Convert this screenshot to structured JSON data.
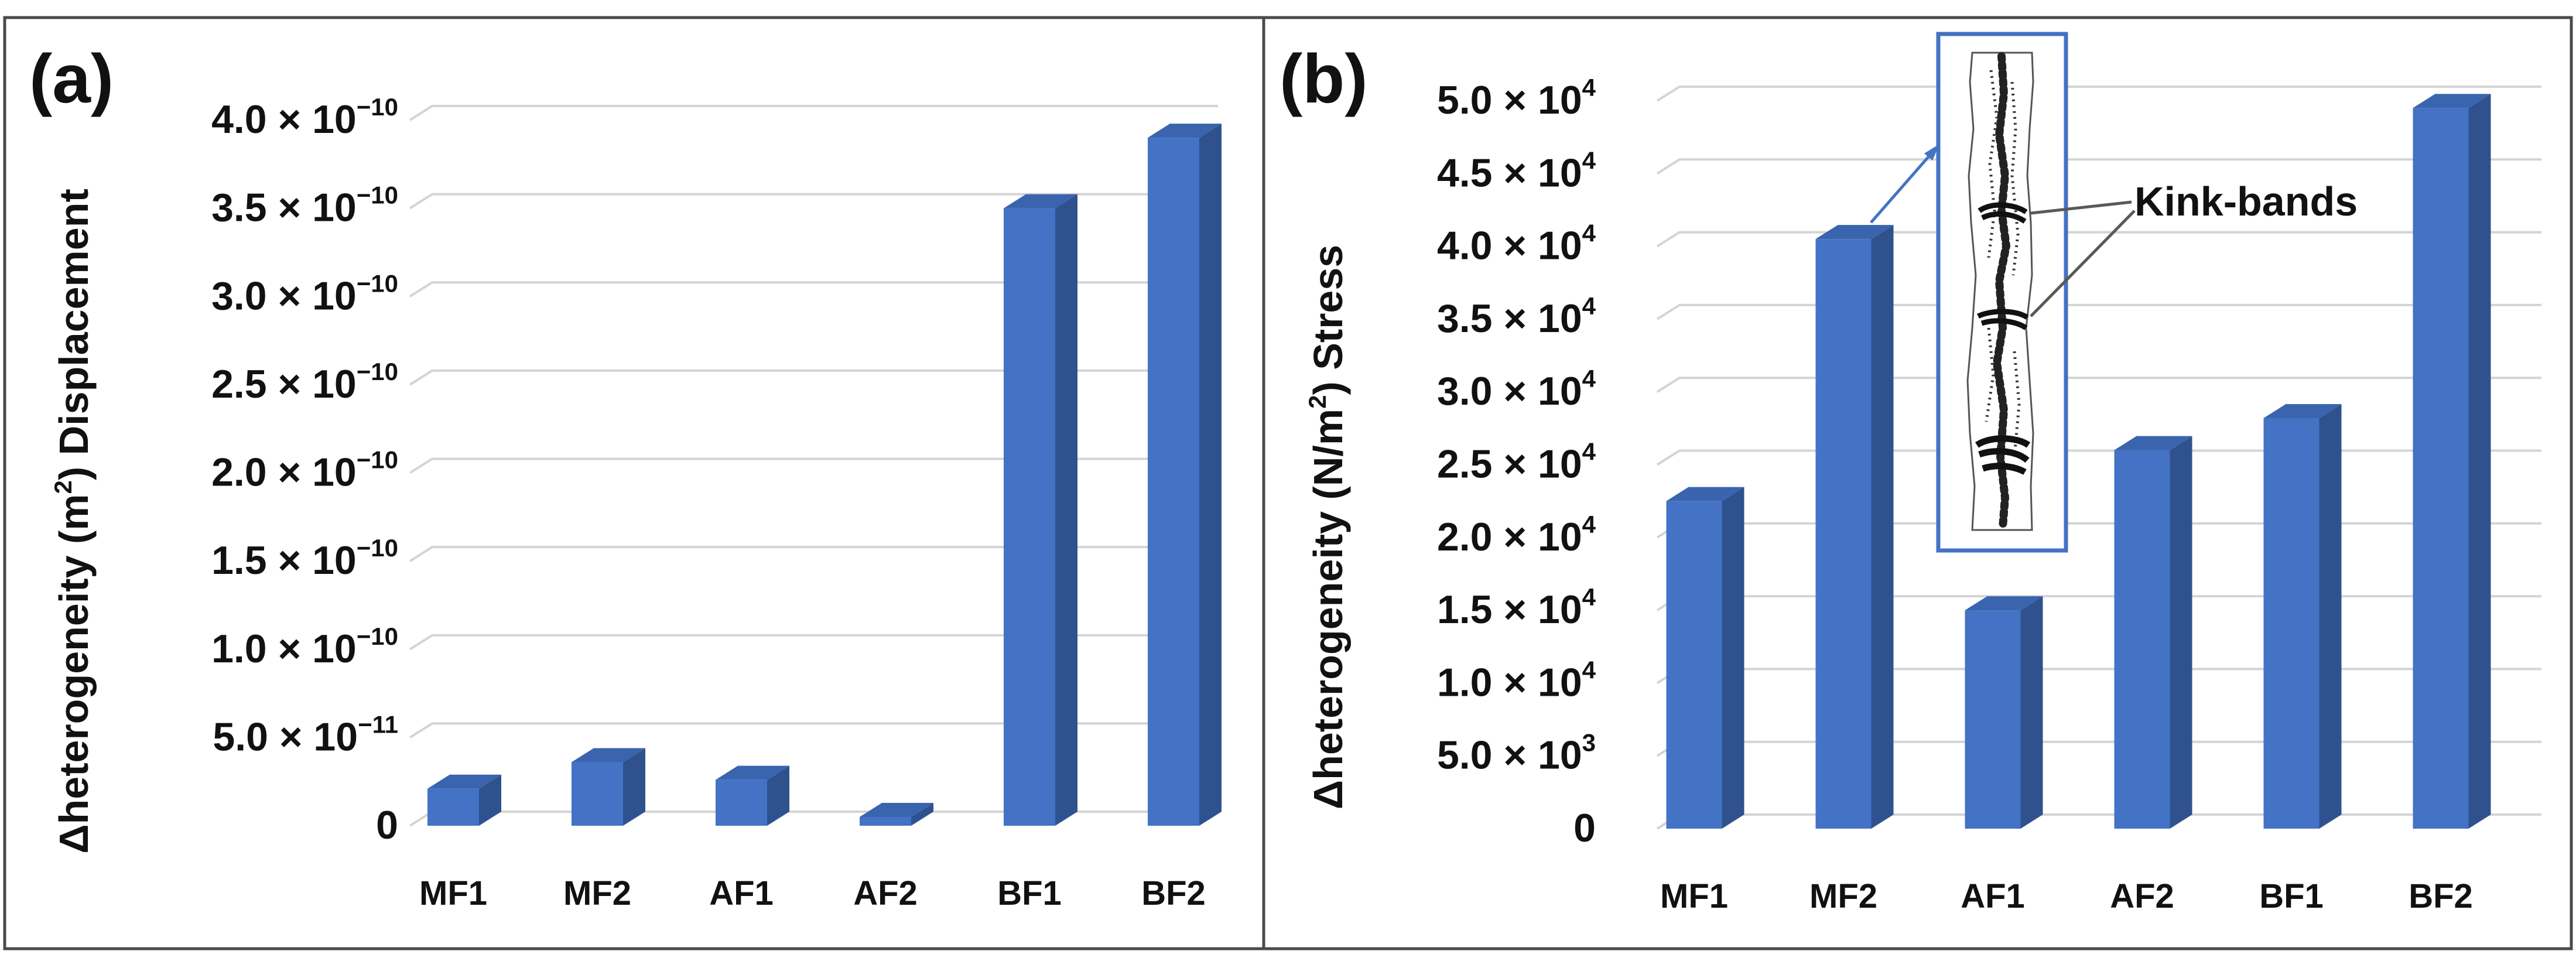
{
  "colors": {
    "bar_front": "#4472c4",
    "bar_side": "#2f528f",
    "bar_top": "#3a64ad",
    "inset_border": "#4472c4",
    "arrow": "#4472c4",
    "annotation_line": "#595959"
  },
  "chart_data": [
    {
      "type": "bar",
      "panel_label": "(a)",
      "categories": [
        "MF1",
        "MF2",
        "AF1",
        "AF2",
        "BF1",
        "BF2"
      ],
      "values": [
        2.1e-11,
        3.6e-11,
        2.6e-11,
        5e-12,
        3.5e-10,
        3.9e-10
      ],
      "ylim": [
        0,
        4e-10
      ],
      "ticks": [
        {
          "value": 0,
          "mantissa": "0",
          "exponent": ""
        },
        {
          "value": 5e-11,
          "mantissa": "5.0 × 10",
          "exponent": "−11"
        },
        {
          "value": 1e-10,
          "mantissa": "1.0 × 10",
          "exponent": "−10"
        },
        {
          "value": 1.5e-10,
          "mantissa": "1.5 × 10",
          "exponent": "−10"
        },
        {
          "value": 2e-10,
          "mantissa": "2.0 × 10",
          "exponent": "−10"
        },
        {
          "value": 2.5e-10,
          "mantissa": "2.5 × 10",
          "exponent": "−10"
        },
        {
          "value": 3e-10,
          "mantissa": "3.0 × 10",
          "exponent": "−10"
        },
        {
          "value": 3.5e-10,
          "mantissa": "3.5 × 10",
          "exponent": "−10"
        },
        {
          "value": 4e-10,
          "mantissa": "4.0 × 10",
          "exponent": "−10"
        }
      ],
      "ylabel_before": "Δheterogeneity (m",
      "ylabel_sup": "2",
      "ylabel_after": ") Displacement",
      "xlabel": "",
      "grid": true
    },
    {
      "type": "bar",
      "panel_label": "(b)",
      "categories": [
        "MF1",
        "MF2",
        "AF1",
        "AF2",
        "BF1",
        "BF2"
      ],
      "values": [
        22500,
        40500,
        15000,
        26000,
        28200,
        49500
      ],
      "ylim": [
        0,
        50000
      ],
      "ticks": [
        {
          "value": 0,
          "mantissa": "0",
          "exponent": ""
        },
        {
          "value": 5000,
          "mantissa": "5.0 × 10",
          "exponent": "3"
        },
        {
          "value": 10000,
          "mantissa": "1.0 × 10",
          "exponent": "4"
        },
        {
          "value": 15000,
          "mantissa": "1.5 × 10",
          "exponent": "4"
        },
        {
          "value": 20000,
          "mantissa": "2.0 × 10",
          "exponent": "4"
        },
        {
          "value": 25000,
          "mantissa": "2.5 × 10",
          "exponent": "4"
        },
        {
          "value": 30000,
          "mantissa": "3.0 × 10",
          "exponent": "4"
        },
        {
          "value": 35000,
          "mantissa": "3.5 × 10",
          "exponent": "4"
        },
        {
          "value": 40000,
          "mantissa": "4.0 × 10",
          "exponent": "4"
        },
        {
          "value": 45000,
          "mantissa": "4.5 × 10",
          "exponent": "4"
        },
        {
          "value": 50000,
          "mantissa": "5.0 × 10",
          "exponent": "4"
        }
      ],
      "ylabel_before": "Δheterogeneity (N/m",
      "ylabel_sup": "2",
      "ylabel_after": ") Stress",
      "xlabel": "",
      "grid": true,
      "annotation": {
        "text": "Kink-bands",
        "points_to": "inset specimen image linked to MF2 bar"
      }
    }
  ]
}
